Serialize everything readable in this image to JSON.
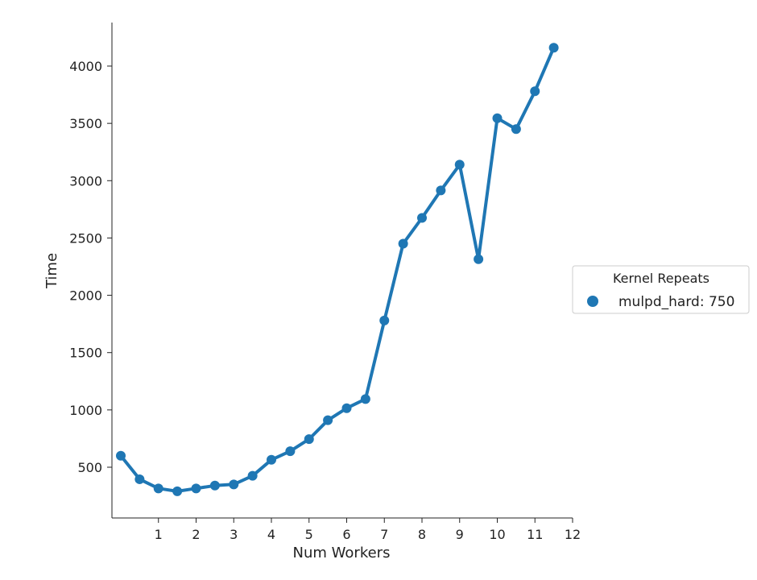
{
  "chart_data": {
    "type": "line",
    "xlabel": "Num Workers",
    "ylabel": "Time",
    "x_ticks": [
      1,
      2,
      3,
      4,
      5,
      6,
      7,
      8,
      9,
      10,
      11,
      12
    ],
    "y_ticks": [
      500,
      1000,
      1500,
      2000,
      2500,
      3000,
      3500,
      4000
    ],
    "xlim": [
      -0.25,
      12
    ],
    "ylim": [
      50,
      4400
    ],
    "grid": false,
    "legend": {
      "title": "Kernel Repeats",
      "placement": "right"
    },
    "series": [
      {
        "name": "mulpd_hard: 750",
        "color": "#1f77b4",
        "x": [
          0,
          0.5,
          1,
          1.5,
          2,
          2.5,
          3,
          3.5,
          4,
          4.5,
          5,
          5.5,
          6,
          6.5,
          7,
          7.5,
          8,
          8.5,
          9,
          9.5,
          10,
          10.5,
          11,
          11.5
        ],
        "y": [
          600,
          395,
          315,
          290,
          315,
          340,
          350,
          425,
          565,
          640,
          745,
          910,
          1015,
          1095,
          1780,
          2450,
          2675,
          2915,
          3140,
          2315,
          3545,
          3450,
          3780,
          4160
        ]
      }
    ]
  }
}
